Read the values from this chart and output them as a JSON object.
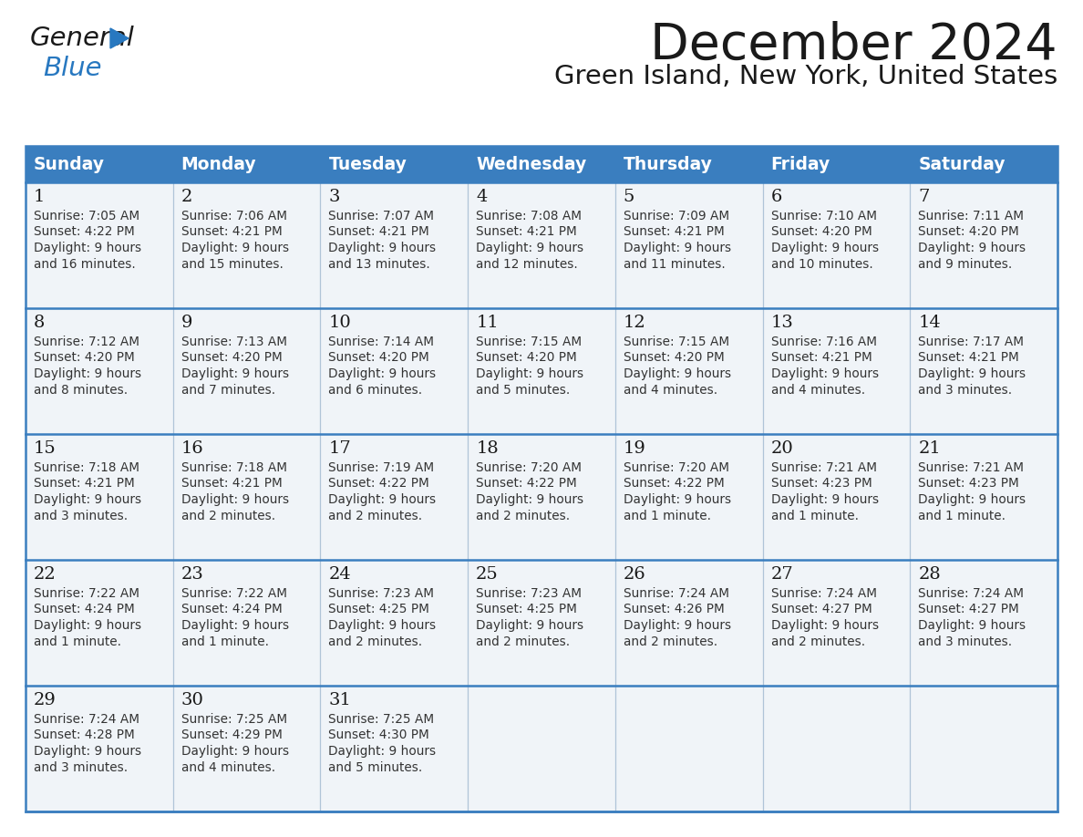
{
  "title": "December 2024",
  "subtitle": "Green Island, New York, United States",
  "header_bg_color": "#3a7ebf",
  "header_text_color": "#ffffff",
  "cell_bg_color": "#f0f4f8",
  "border_color": "#3a7ebf",
  "grid_color": "#b0c4d8",
  "days_of_week": [
    "Sunday",
    "Monday",
    "Tuesday",
    "Wednesday",
    "Thursday",
    "Friday",
    "Saturday"
  ],
  "calendar_data": [
    [
      {
        "day": "1",
        "sunrise": "7:05 AM",
        "sunset": "4:22 PM",
        "daylight": "9 hours and 16 minutes."
      },
      {
        "day": "2",
        "sunrise": "7:06 AM",
        "sunset": "4:21 PM",
        "daylight": "9 hours and 15 minutes."
      },
      {
        "day": "3",
        "sunrise": "7:07 AM",
        "sunset": "4:21 PM",
        "daylight": "9 hours and 13 minutes."
      },
      {
        "day": "4",
        "sunrise": "7:08 AM",
        "sunset": "4:21 PM",
        "daylight": "9 hours and 12 minutes."
      },
      {
        "day": "5",
        "sunrise": "7:09 AM",
        "sunset": "4:21 PM",
        "daylight": "9 hours and 11 minutes."
      },
      {
        "day": "6",
        "sunrise": "7:10 AM",
        "sunset": "4:20 PM",
        "daylight": "9 hours and 10 minutes."
      },
      {
        "day": "7",
        "sunrise": "7:11 AM",
        "sunset": "4:20 PM",
        "daylight": "9 hours and 9 minutes."
      }
    ],
    [
      {
        "day": "8",
        "sunrise": "7:12 AM",
        "sunset": "4:20 PM",
        "daylight": "9 hours and 8 minutes."
      },
      {
        "day": "9",
        "sunrise": "7:13 AM",
        "sunset": "4:20 PM",
        "daylight": "9 hours and 7 minutes."
      },
      {
        "day": "10",
        "sunrise": "7:14 AM",
        "sunset": "4:20 PM",
        "daylight": "9 hours and 6 minutes."
      },
      {
        "day": "11",
        "sunrise": "7:15 AM",
        "sunset": "4:20 PM",
        "daylight": "9 hours and 5 minutes."
      },
      {
        "day": "12",
        "sunrise": "7:15 AM",
        "sunset": "4:20 PM",
        "daylight": "9 hours and 4 minutes."
      },
      {
        "day": "13",
        "sunrise": "7:16 AM",
        "sunset": "4:21 PM",
        "daylight": "9 hours and 4 minutes."
      },
      {
        "day": "14",
        "sunrise": "7:17 AM",
        "sunset": "4:21 PM",
        "daylight": "9 hours and 3 minutes."
      }
    ],
    [
      {
        "day": "15",
        "sunrise": "7:18 AM",
        "sunset": "4:21 PM",
        "daylight": "9 hours and 3 minutes."
      },
      {
        "day": "16",
        "sunrise": "7:18 AM",
        "sunset": "4:21 PM",
        "daylight": "9 hours and 2 minutes."
      },
      {
        "day": "17",
        "sunrise": "7:19 AM",
        "sunset": "4:22 PM",
        "daylight": "9 hours and 2 minutes."
      },
      {
        "day": "18",
        "sunrise": "7:20 AM",
        "sunset": "4:22 PM",
        "daylight": "9 hours and 2 minutes."
      },
      {
        "day": "19",
        "sunrise": "7:20 AM",
        "sunset": "4:22 PM",
        "daylight": "9 hours and 1 minute."
      },
      {
        "day": "20",
        "sunrise": "7:21 AM",
        "sunset": "4:23 PM",
        "daylight": "9 hours and 1 minute."
      },
      {
        "day": "21",
        "sunrise": "7:21 AM",
        "sunset": "4:23 PM",
        "daylight": "9 hours and 1 minute."
      }
    ],
    [
      {
        "day": "22",
        "sunrise": "7:22 AM",
        "sunset": "4:24 PM",
        "daylight": "9 hours and 1 minute."
      },
      {
        "day": "23",
        "sunrise": "7:22 AM",
        "sunset": "4:24 PM",
        "daylight": "9 hours and 1 minute."
      },
      {
        "day": "24",
        "sunrise": "7:23 AM",
        "sunset": "4:25 PM",
        "daylight": "9 hours and 2 minutes."
      },
      {
        "day": "25",
        "sunrise": "7:23 AM",
        "sunset": "4:25 PM",
        "daylight": "9 hours and 2 minutes."
      },
      {
        "day": "26",
        "sunrise": "7:24 AM",
        "sunset": "4:26 PM",
        "daylight": "9 hours and 2 minutes."
      },
      {
        "day": "27",
        "sunrise": "7:24 AM",
        "sunset": "4:27 PM",
        "daylight": "9 hours and 2 minutes."
      },
      {
        "day": "28",
        "sunrise": "7:24 AM",
        "sunset": "4:27 PM",
        "daylight": "9 hours and 3 minutes."
      }
    ],
    [
      {
        "day": "29",
        "sunrise": "7:24 AM",
        "sunset": "4:28 PM",
        "daylight": "9 hours and 3 minutes."
      },
      {
        "day": "30",
        "sunrise": "7:25 AM",
        "sunset": "4:29 PM",
        "daylight": "9 hours and 4 minutes."
      },
      {
        "day": "31",
        "sunrise": "7:25 AM",
        "sunset": "4:30 PM",
        "daylight": "9 hours and 5 minutes."
      },
      null,
      null,
      null,
      null
    ]
  ],
  "logo_general_color": "#1a1a1a",
  "logo_blue_color": "#2878c0",
  "logo_triangle_color": "#2878c0",
  "title_color": "#1a1a1a",
  "subtitle_color": "#1a1a1a",
  "day_number_color": "#1a1a1a",
  "cell_text_color": "#333333"
}
